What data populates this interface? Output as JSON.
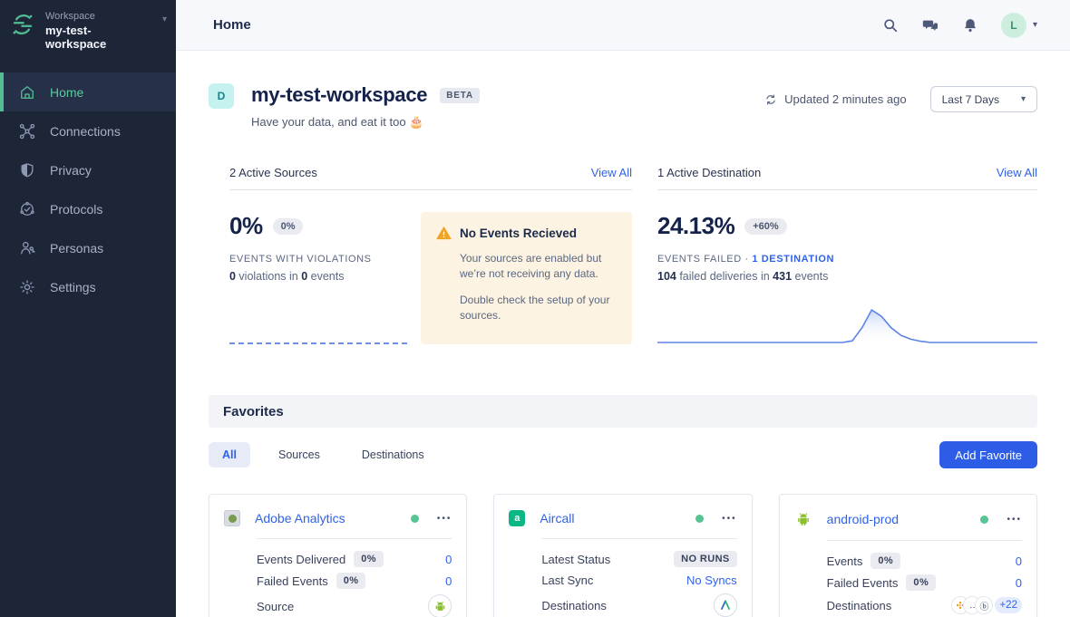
{
  "sidebar": {
    "workspace_label": "Workspace",
    "workspace_name": "my-test-workspace",
    "items": [
      {
        "label": "Home",
        "icon": "home-icon",
        "active": true
      },
      {
        "label": "Connections",
        "icon": "connections-icon",
        "active": false
      },
      {
        "label": "Privacy",
        "icon": "privacy-shield-icon",
        "active": false
      },
      {
        "label": "Protocols",
        "icon": "protocols-icon",
        "active": false
      },
      {
        "label": "Personas",
        "icon": "personas-icon",
        "active": false
      },
      {
        "label": "Settings",
        "icon": "settings-gear-icon",
        "active": false
      }
    ]
  },
  "topbar": {
    "title": "Home",
    "icons": [
      "search-icon",
      "chat-icon",
      "notifications-bell-icon"
    ],
    "avatar_initial": "L"
  },
  "workspace_header": {
    "avatar_initial": "D",
    "title": "my-test-workspace",
    "badge": "BETA",
    "subtitle": "Have your data, and eat it too 🎂",
    "updated": "Updated 2 minutes ago",
    "date_range": "Last 7 Days"
  },
  "sources_section": {
    "title": "2 Active Sources",
    "view_all": "View All",
    "stat_value": "0%",
    "stat_badge": "0%",
    "stat_label": "EVENTS WITH VIOLATIONS",
    "detail": {
      "n1": "0",
      "t1": " violations in ",
      "n2": "0",
      "t2": " events"
    },
    "alert": {
      "title": "No Events Recieved",
      "body1": "Your sources are enabled but we’re not receiving any data.",
      "body2": "Double check the setup of your sources."
    }
  },
  "destinations_section": {
    "title": "1 Active Destination",
    "view_all": "View All",
    "stat_value": "24.13%",
    "stat_badge": "+60%",
    "stat_label_prefix": "EVENTS FAILED",
    "stat_label_separator": "·",
    "stat_label_link": "1 DESTINATION",
    "detail": {
      "n1": "104",
      "t1": " failed deliveries in ",
      "n2": "431",
      "t2": " events"
    },
    "sparkline": {
      "type": "area",
      "description": "failed events over selected range, flat at 0 with single spike at ~56% of range",
      "color": "#5b82e8",
      "values": [
        0,
        0,
        0,
        0,
        0,
        0,
        0,
        0,
        0,
        0,
        0,
        0,
        0,
        0,
        0,
        0,
        0,
        0,
        0,
        0,
        0.05,
        0.45,
        1,
        0.8,
        0.45,
        0.22,
        0.1,
        0.04,
        0,
        0,
        0,
        0,
        0,
        0,
        0,
        0,
        0,
        0,
        0,
        0
      ]
    }
  },
  "favorites": {
    "title": "Favorites",
    "tabs": [
      {
        "label": "All",
        "active": true
      },
      {
        "label": "Sources",
        "active": false
      },
      {
        "label": "Destinations",
        "active": false
      }
    ],
    "add_button": "Add Favorite",
    "cards": [
      {
        "name": "Adobe Analytics",
        "logo": "adobe-analytics-logo",
        "status": "enabled",
        "menu": "•••",
        "rows": [
          {
            "label": "Events Delivered",
            "badge": "0%",
            "value": "0"
          },
          {
            "label": "Failed Events",
            "badge": "0%",
            "value": "0"
          },
          {
            "label": "Source",
            "value_icon": "android-icon"
          }
        ]
      },
      {
        "name": "Aircall",
        "logo": "aircall-logo",
        "status": "enabled",
        "menu": "•••",
        "rows": [
          {
            "label": "Latest Status",
            "value_badge": "NO RUNS"
          },
          {
            "label": "Last Sync",
            "value": "No Syncs"
          },
          {
            "label": "Destinations",
            "value_icon": "destination-a-icon"
          }
        ]
      },
      {
        "name": "android-prod",
        "logo": "android-icon",
        "status": "enabled",
        "menu": "•••",
        "rows": [
          {
            "label": "Events",
            "badge": "0%",
            "value": "0"
          },
          {
            "label": "Failed Events",
            "badge": "0%",
            "value": "0"
          },
          {
            "label": "Destinations",
            "value_icons": [
              "zapier-like-icon",
              "dots-icon",
              "circled-b-icon"
            ],
            "overflow": "+22"
          }
        ]
      }
    ]
  }
}
